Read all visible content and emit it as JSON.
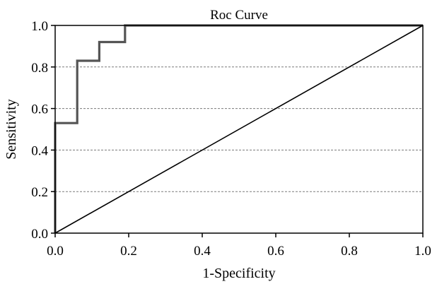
{
  "chart_data": {
    "type": "line",
    "title": "Roc Curve",
    "xlabel": "1-Specificity",
    "ylabel": "Sensitivity",
    "xlim": [
      0.0,
      1.0
    ],
    "ylim": [
      0.0,
      1.0
    ],
    "x_ticks": [
      "0.0",
      "0.2",
      "0.4",
      "0.6",
      "0.8",
      "1.0"
    ],
    "y_ticks": [
      "0.0",
      "0.2",
      "0.4",
      "0.6",
      "0.8",
      "1.0"
    ],
    "grid": "horizontal dashed",
    "series": [
      {
        "color": "#555555",
        "points": [
          [
            0.0,
            0.0
          ],
          [
            0.0,
            0.53
          ],
          [
            0.06,
            0.53
          ],
          [
            0.06,
            0.83
          ],
          [
            0.12,
            0.83
          ],
          [
            0.12,
            0.92
          ],
          [
            0.19,
            0.92
          ],
          [
            0.19,
            1.0
          ],
          [
            1.0,
            1.0
          ]
        ]
      },
      {
        "color": "#000000",
        "points": [
          [
            0.0,
            0.0
          ],
          [
            1.0,
            1.0
          ]
        ]
      }
    ]
  }
}
